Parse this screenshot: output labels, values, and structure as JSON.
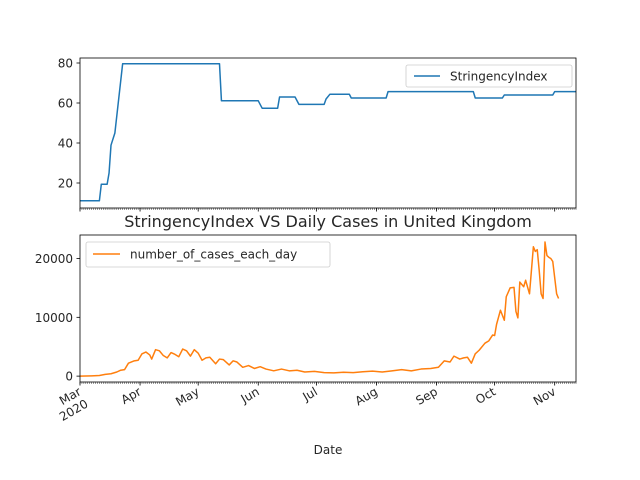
{
  "chart_data": [
    {
      "type": "line",
      "title": "",
      "xlabel": "",
      "ylabel": "",
      "ylim": [
        7.5,
        82.5
      ],
      "yticks": [
        20,
        40,
        60,
        80
      ],
      "legend_position": "upper-right",
      "colors": {
        "line": "#1f77b4"
      },
      "series": [
        {
          "name": "StringencyIndex",
          "points": [
            [
              "2020-03-01",
              11.1
            ],
            [
              "2020-03-11",
              11.1
            ],
            [
              "2020-03-12",
              19.4
            ],
            [
              "2020-03-15",
              19.4
            ],
            [
              "2020-03-16",
              25.0
            ],
            [
              "2020-03-17",
              38.9
            ],
            [
              "2020-03-19",
              45.0
            ],
            [
              "2020-03-23",
              79.6
            ],
            [
              "2020-05-12",
              79.6
            ],
            [
              "2020-05-13",
              61.1
            ],
            [
              "2020-06-01",
              61.1
            ],
            [
              "2020-06-03",
              57.4
            ],
            [
              "2020-06-11",
              57.4
            ],
            [
              "2020-06-12",
              63.0
            ],
            [
              "2020-06-20",
              63.0
            ],
            [
              "2020-06-22",
              59.3
            ],
            [
              "2020-07-05",
              59.3
            ],
            [
              "2020-07-06",
              62.0
            ],
            [
              "2020-07-08",
              64.4
            ],
            [
              "2020-07-18",
              64.4
            ],
            [
              "2020-07-19",
              62.5
            ],
            [
              "2020-08-06",
              62.5
            ],
            [
              "2020-08-07",
              65.7
            ],
            [
              "2020-09-20",
              65.7
            ],
            [
              "2020-09-21",
              62.5
            ],
            [
              "2020-10-05",
              62.5
            ],
            [
              "2020-10-06",
              64.0
            ],
            [
              "2020-10-31",
              64.0
            ],
            [
              "2020-11-01",
              65.7
            ],
            [
              "2020-11-12",
              65.7
            ]
          ]
        }
      ]
    },
    {
      "type": "line",
      "title": "StringencyIndex VS Daily Cases in United Kingdom",
      "xlabel": "Date",
      "ylabel": "",
      "ylim": [
        -1000,
        24000
      ],
      "yticks": [
        0,
        10000,
        20000
      ],
      "xlim": [
        "2020-03-01",
        "2020-11-12"
      ],
      "x_major_ticks": [
        {
          "date": "2020-03-01",
          "label": "Mar",
          "sub": "2020"
        },
        {
          "date": "2020-04-01",
          "label": "Apr"
        },
        {
          "date": "2020-05-01",
          "label": "May"
        },
        {
          "date": "2020-06-01",
          "label": "Jun"
        },
        {
          "date": "2020-07-01",
          "label": "Jul"
        },
        {
          "date": "2020-08-01",
          "label": "Aug"
        },
        {
          "date": "2020-09-01",
          "label": "Sep"
        },
        {
          "date": "2020-10-01",
          "label": "Oct"
        },
        {
          "date": "2020-11-01",
          "label": "Nov"
        }
      ],
      "legend_position": "upper-left",
      "colors": {
        "line": "#ff7f0e"
      },
      "series": [
        {
          "name": "number_of_cases_each_day",
          "points": [
            [
              "2020-03-01",
              0
            ],
            [
              "2020-03-07",
              50
            ],
            [
              "2020-03-11",
              100
            ],
            [
              "2020-03-14",
              300
            ],
            [
              "2020-03-17",
              400
            ],
            [
              "2020-03-20",
              700
            ],
            [
              "2020-03-22",
              1000
            ],
            [
              "2020-03-24",
              1100
            ],
            [
              "2020-03-26",
              2200
            ],
            [
              "2020-03-29",
              2600
            ],
            [
              "2020-03-31",
              2700
            ],
            [
              "2020-04-02",
              3800
            ],
            [
              "2020-04-04",
              4100
            ],
            [
              "2020-04-06",
              3600
            ],
            [
              "2020-04-07",
              2900
            ],
            [
              "2020-04-09",
              4500
            ],
            [
              "2020-04-11",
              4300
            ],
            [
              "2020-04-13",
              3500
            ],
            [
              "2020-04-15",
              3100
            ],
            [
              "2020-04-17",
              4000
            ],
            [
              "2020-04-19",
              3700
            ],
            [
              "2020-04-21",
              3300
            ],
            [
              "2020-04-23",
              4600
            ],
            [
              "2020-04-25",
              4300
            ],
            [
              "2020-04-27",
              3400
            ],
            [
              "2020-04-29",
              4500
            ],
            [
              "2020-05-01",
              3900
            ],
            [
              "2020-05-03",
              2700
            ],
            [
              "2020-05-05",
              3100
            ],
            [
              "2020-05-07",
              3200
            ],
            [
              "2020-05-10",
              2100
            ],
            [
              "2020-05-12",
              2900
            ],
            [
              "2020-05-14",
              2800
            ],
            [
              "2020-05-17",
              1900
            ],
            [
              "2020-05-19",
              2600
            ],
            [
              "2020-05-21",
              2400
            ],
            [
              "2020-05-24",
              1500
            ],
            [
              "2020-05-27",
              1800
            ],
            [
              "2020-05-30",
              1300
            ],
            [
              "2020-06-02",
              1600
            ],
            [
              "2020-06-05",
              1200
            ],
            [
              "2020-06-09",
              900
            ],
            [
              "2020-06-13",
              1200
            ],
            [
              "2020-06-17",
              900
            ],
            [
              "2020-06-21",
              1000
            ],
            [
              "2020-06-25",
              700
            ],
            [
              "2020-06-30",
              800
            ],
            [
              "2020-07-05",
              600
            ],
            [
              "2020-07-10",
              550
            ],
            [
              "2020-07-15",
              650
            ],
            [
              "2020-07-20",
              600
            ],
            [
              "2020-07-25",
              750
            ],
            [
              "2020-07-30",
              850
            ],
            [
              "2020-08-04",
              700
            ],
            [
              "2020-08-09",
              900
            ],
            [
              "2020-08-14",
              1100
            ],
            [
              "2020-08-19",
              900
            ],
            [
              "2020-08-24",
              1200
            ],
            [
              "2020-08-29",
              1300
            ],
            [
              "2020-09-02",
              1500
            ],
            [
              "2020-09-05",
              2600
            ],
            [
              "2020-09-08",
              2400
            ],
            [
              "2020-09-10",
              3400
            ],
            [
              "2020-09-13",
              2900
            ],
            [
              "2020-09-15",
              3100
            ],
            [
              "2020-09-17",
              3200
            ],
            [
              "2020-09-19",
              2200
            ],
            [
              "2020-09-21",
              3800
            ],
            [
              "2020-09-23",
              4400
            ],
            [
              "2020-09-26",
              5600
            ],
            [
              "2020-09-28",
              6000
            ],
            [
              "2020-09-30",
              7000
            ],
            [
              "2020-10-01",
              6900
            ],
            [
              "2020-10-02",
              8800
            ],
            [
              "2020-10-03",
              10000
            ],
            [
              "2020-10-04",
              11200
            ],
            [
              "2020-10-06",
              9500
            ],
            [
              "2020-10-07",
              13500
            ],
            [
              "2020-10-09",
              15000
            ],
            [
              "2020-10-11",
              15100
            ],
            [
              "2020-10-12",
              11000
            ],
            [
              "2020-10-13",
              9900
            ],
            [
              "2020-10-14",
              16000
            ],
            [
              "2020-10-16",
              15200
            ],
            [
              "2020-10-17",
              16300
            ],
            [
              "2020-10-19",
              14000
            ],
            [
              "2020-10-21",
              22000
            ],
            [
              "2020-10-22",
              21200
            ],
            [
              "2020-10-23",
              21500
            ],
            [
              "2020-10-24",
              18000
            ],
            [
              "2020-10-25",
              14000
            ],
            [
              "2020-10-26",
              13200
            ],
            [
              "2020-10-27",
              22800
            ],
            [
              "2020-10-28",
              20500
            ],
            [
              "2020-10-29",
              20200
            ],
            [
              "2020-10-30",
              20000
            ],
            [
              "2020-10-31",
              19500
            ],
            [
              "2020-11-02",
              14000
            ],
            [
              "2020-11-03",
              13200
            ]
          ]
        }
      ]
    }
  ]
}
